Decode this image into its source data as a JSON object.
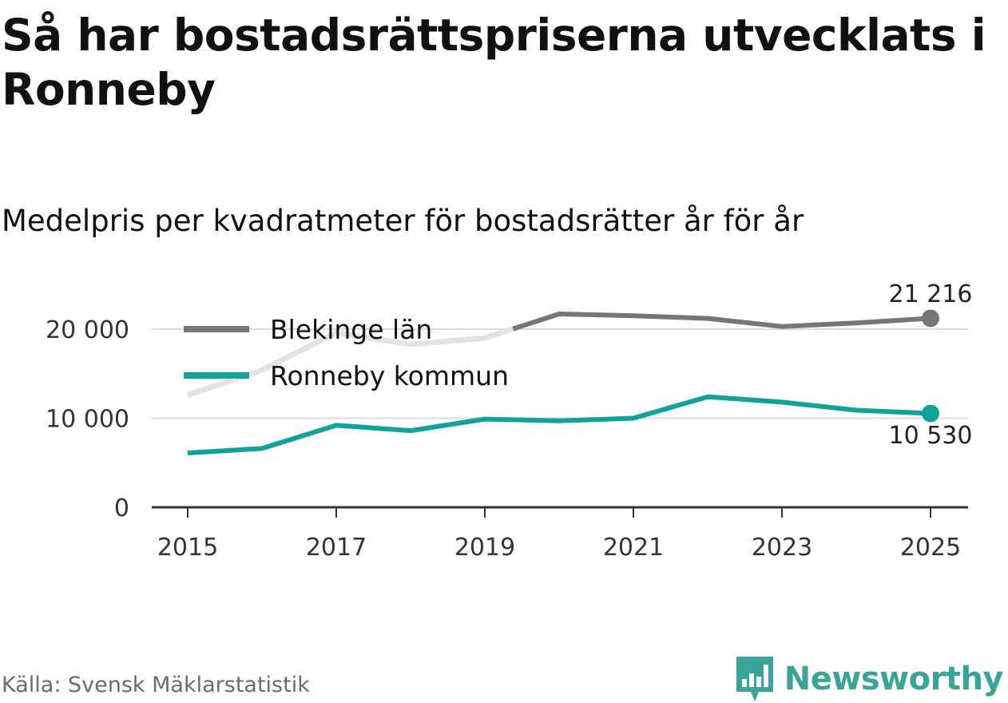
{
  "title": "Så har bostadsrättspriserna utvecklats i Ronneby",
  "subtitle": "Medelpris per kvadratmeter för bostadsrätter år för år",
  "source": "Källa: Svensk Mäklarstatistik",
  "brand": "Newsworthy",
  "chart_data": {
    "type": "line",
    "title": "Så har bostadsrättspriserna utvecklats i Ronneby",
    "subtitle": "Medelpris per kvadratmeter för bostadsrätter år för år",
    "xlabel": "",
    "ylabel": "",
    "x": [
      2015,
      2016,
      2017,
      2018,
      2019,
      2020,
      2021,
      2022,
      2023,
      2024,
      2025
    ],
    "xlim": [
      2015,
      2025
    ],
    "ylim": [
      0,
      21500
    ],
    "x_ticks": [
      "2015",
      "2017",
      "2019",
      "2021",
      "2023",
      "2025"
    ],
    "y_ticks": [
      {
        "value": 0,
        "label": "0"
      },
      {
        "value": 10000,
        "label": "10 000"
      },
      {
        "value": 20000,
        "label": "20 000"
      }
    ],
    "grid": true,
    "legend_position": "top-left",
    "series": [
      {
        "name": "Blekinge län",
        "color": "#76757a",
        "faded_color": "#e3e3e3",
        "values": [
          12600,
          15400,
          19600,
          18300,
          19000,
          21700,
          21500,
          21200,
          20300,
          20700,
          21216
        ],
        "end_label": "21 216"
      },
      {
        "name": "Ronneby kommun",
        "color": "#12a19b",
        "values": [
          6100,
          6600,
          9200,
          8600,
          9900,
          9700,
          10000,
          12400,
          11800,
          10900,
          10530
        ],
        "end_label": "10 530"
      }
    ]
  }
}
